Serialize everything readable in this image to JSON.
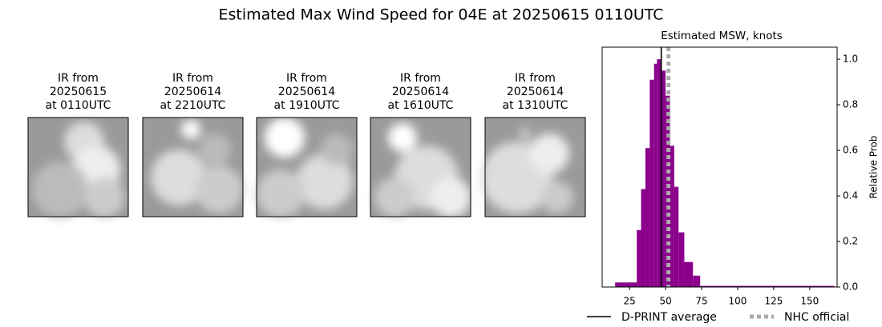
{
  "title": "Estimated Max Wind Speed for 04E at 20250615 0110UTC",
  "panels": [
    {
      "lines": [
        "IR from",
        "20250615",
        "at 0110UTC"
      ]
    },
    {
      "lines": [
        "IR from",
        "20250614",
        "at 2210UTC"
      ]
    },
    {
      "lines": [
        "IR from",
        "20250614",
        "at 1910UTC"
      ]
    },
    {
      "lines": [
        "IR from",
        "20250614",
        "at 1610UTC"
      ]
    },
    {
      "lines": [
        "IR from",
        "20250614",
        "at 1310UTC"
      ]
    }
  ],
  "chart_data": {
    "type": "histogram",
    "title": "Estimated MSW, knots",
    "y_label": "Relative Prob",
    "bins": [
      15,
      30,
      33,
      36,
      39,
      42,
      44,
      47,
      50,
      53,
      56,
      59,
      63,
      69,
      74,
      167
    ],
    "counts": [
      0.02,
      0.25,
      0.43,
      0.61,
      0.91,
      0.98,
      1.0,
      0.95,
      0.84,
      0.62,
      0.44,
      0.24,
      0.11,
      0.05,
      0.005
    ],
    "color": "#8b008b",
    "xlim": [
      6,
      169
    ],
    "xticks": [
      25,
      50,
      75,
      100,
      125,
      150
    ],
    "ylim": [
      0,
      1.053
    ],
    "yticks": [
      {
        "value": 0,
        "label": "0.0"
      },
      {
        "value": 0.2,
        "label": "0.2"
      },
      {
        "value": 0.4,
        "label": "0.4"
      },
      {
        "value": 0.6,
        "label": "0.6"
      },
      {
        "value": 0.8,
        "label": "0.8"
      },
      {
        "value": 1.0,
        "label": "1.0"
      }
    ],
    "y_axis_side": "right",
    "lines": [
      {
        "name": "D-PRINT average",
        "x": 47,
        "color": "#000000",
        "style": "solid"
      },
      {
        "name": "NHC official",
        "x": 52,
        "color": "#aaaaaa",
        "style": "dotted"
      }
    ]
  }
}
